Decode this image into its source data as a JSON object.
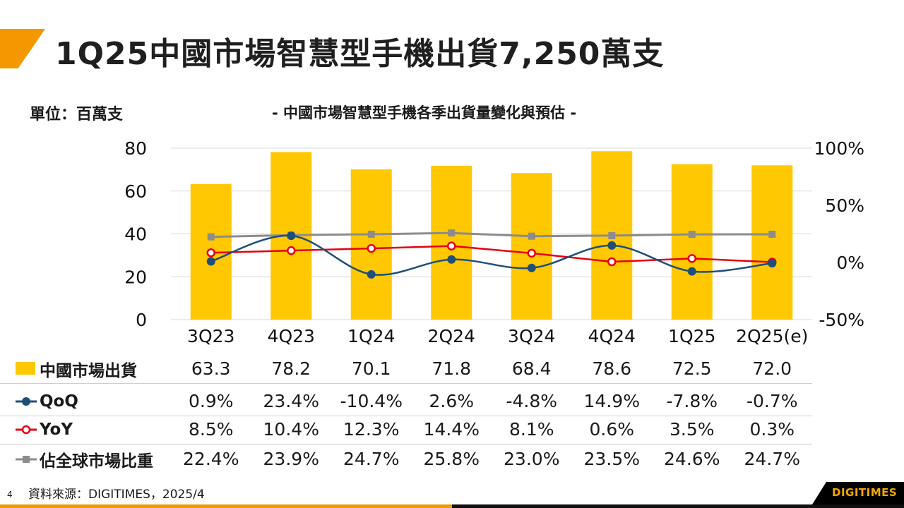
{
  "slide": {
    "title": "1Q25中國市場智慧型手機出貨7,250萬支",
    "unit": "單位：百萬支",
    "subtitle": "- 中國市場智慧型手機各季出貨量變化與預估 -",
    "source": "資料來源：DIGITIMES，2025/4",
    "page_number": "4",
    "brand": "DIGITIMES"
  },
  "colors": {
    "accent": "#f39800",
    "bar": "#ffc800",
    "qoq": "#1f4e79",
    "yoy": "#e60012",
    "share": "#8c8c8c"
  },
  "chart_data": {
    "type": "bar+line",
    "title": "- 中國市場智慧型手機各季出貨量變化與預估 -",
    "categories": [
      "3Q23",
      "4Q23",
      "1Q24",
      "2Q24",
      "3Q24",
      "4Q24",
      "1Q25",
      "2Q25(e)"
    ],
    "y_left": {
      "min": 0,
      "max": 80,
      "ticks": [
        0,
        20,
        40,
        60,
        80
      ],
      "tick_labels": [
        "0",
        "20",
        "40",
        "60",
        "80"
      ]
    },
    "y_right": {
      "min": -50,
      "max": 100,
      "ticks": [
        -50,
        0,
        50,
        100
      ],
      "tick_labels": [
        "-50%",
        "0%",
        "50%",
        "100%"
      ]
    },
    "series": [
      {
        "name": "中國市場出貨",
        "type": "bar",
        "axis": "left",
        "values": [
          63.3,
          78.2,
          70.1,
          71.8,
          68.4,
          78.6,
          72.5,
          72.0
        ],
        "labels": [
          "63.3",
          "78.2",
          "70.1",
          "71.8",
          "68.4",
          "78.6",
          "72.5",
          "72.0"
        ]
      },
      {
        "name": "QoQ",
        "type": "line",
        "axis": "right",
        "smooth": true,
        "values": [
          0.9,
          23.4,
          -10.4,
          2.6,
          -4.8,
          14.9,
          -7.8,
          -0.7
        ],
        "labels": [
          "0.9%",
          "23.4%",
          "-10.4%",
          "2.6%",
          "-4.8%",
          "14.9%",
          "-7.8%",
          "-0.7%"
        ]
      },
      {
        "name": "YoY",
        "type": "line",
        "axis": "right",
        "values": [
          8.5,
          10.4,
          12.3,
          14.4,
          8.1,
          0.6,
          3.5,
          0.3
        ],
        "labels": [
          "8.5%",
          "10.4%",
          "12.3%",
          "14.4%",
          "8.1%",
          "0.6%",
          "3.5%",
          "0.3%"
        ]
      },
      {
        "name": "佔全球市場比重",
        "type": "line",
        "axis": "right",
        "values": [
          22.4,
          23.9,
          24.7,
          25.8,
          23.0,
          23.5,
          24.6,
          24.7
        ],
        "labels": [
          "22.4%",
          "23.9%",
          "24.7%",
          "25.8%",
          "23.0%",
          "23.5%",
          "24.6%",
          "24.7%"
        ]
      }
    ]
  }
}
